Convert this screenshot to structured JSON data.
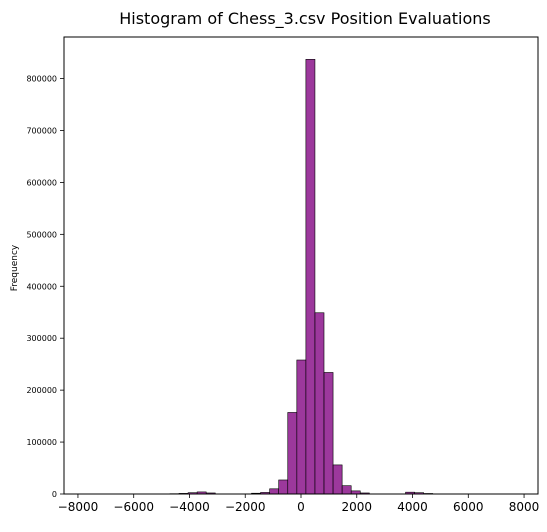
{
  "chart_data": {
    "type": "bar",
    "title": "Histogram of Chess_3.csv Position Evaluations",
    "xlabel": "",
    "ylabel": "Frequency",
    "xlim": [
      -8500,
      8500
    ],
    "ylim": [
      0,
      880000
    ],
    "x_ticks": [
      -8000,
      -6000,
      -4000,
      -2000,
      0,
      2000,
      4000,
      6000,
      8000
    ],
    "x_tick_labels": [
      "−8000",
      "−6000",
      "−4000",
      "−2000",
      "0",
      "2000",
      "4000",
      "6000",
      "8000"
    ],
    "y_ticks": [
      0,
      100000,
      200000,
      300000,
      400000,
      500000,
      600000,
      700000,
      800000
    ],
    "y_tick_labels": [
      "0",
      "100000",
      "200000",
      "300000",
      "400000",
      "500000",
      "600000",
      "700000",
      "800000"
    ],
    "grid": false,
    "bin_width": 325,
    "bar_color": "#800080",
    "bar_edge_color": "#000000",
    "bins": [
      {
        "x0": -4700,
        "value": 600
      },
      {
        "x0": -4375,
        "value": 1200
      },
      {
        "x0": -4050,
        "value": 2500
      },
      {
        "x0": -3725,
        "value": 4000
      },
      {
        "x0": -3400,
        "value": 2000
      },
      {
        "x0": -1775,
        "value": 1500
      },
      {
        "x0": -1450,
        "value": 3000
      },
      {
        "x0": -1125,
        "value": 10000
      },
      {
        "x0": -800,
        "value": 27000
      },
      {
        "x0": -475,
        "value": 157000
      },
      {
        "x0": -150,
        "value": 258000
      },
      {
        "x0": 175,
        "value": 837000
      },
      {
        "x0": 500,
        "value": 349000
      },
      {
        "x0": 825,
        "value": 234000
      },
      {
        "x0": 1150,
        "value": 56000
      },
      {
        "x0": 1475,
        "value": 16000
      },
      {
        "x0": 1800,
        "value": 6000
      },
      {
        "x0": 2125,
        "value": 2000
      },
      {
        "x0": 3750,
        "value": 3500
      },
      {
        "x0": 4075,
        "value": 2500
      },
      {
        "x0": 4400,
        "value": 1000
      }
    ]
  }
}
